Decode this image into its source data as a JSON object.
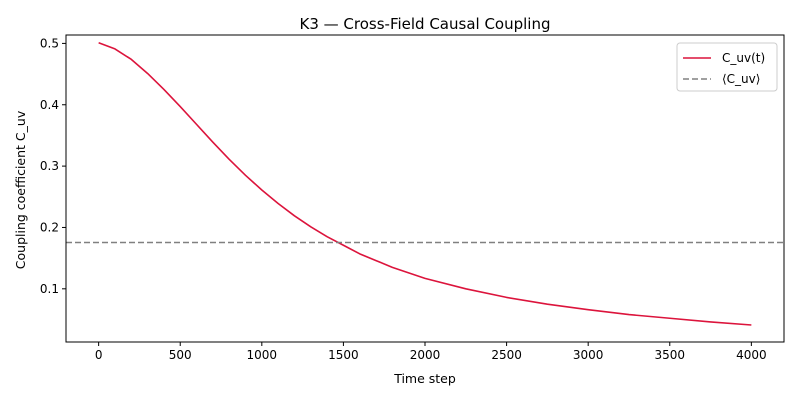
{
  "chart_data": {
    "type": "line",
    "title": "K3 — Cross-Field Causal Coupling",
    "xlabel": "Time step",
    "ylabel": "Coupling coefficient C_uv",
    "xlim": [
      -200,
      4200
    ],
    "ylim": [
      0.0133,
      0.5137
    ],
    "xticks": [
      0,
      500,
      1000,
      1500,
      2000,
      2500,
      3000,
      3500,
      4000
    ],
    "yticks": [
      0.1,
      0.2,
      0.3,
      0.4,
      0.5
    ],
    "grid": false,
    "legend_position": "top-right",
    "series": [
      {
        "name": "C_uv(t)",
        "color": "#dc143c",
        "style": "solid",
        "x": [
          0,
          100,
          200,
          300,
          400,
          500,
          600,
          700,
          800,
          900,
          1000,
          1100,
          1200,
          1300,
          1400,
          1500,
          1600,
          1700,
          1800,
          1900,
          2000,
          2250,
          2500,
          2750,
          3000,
          3250,
          3500,
          3750,
          4000
        ],
        "y": [
          0.501,
          0.491,
          0.474,
          0.451,
          0.425,
          0.397,
          0.368,
          0.339,
          0.311,
          0.285,
          0.261,
          0.239,
          0.219,
          0.201,
          0.185,
          0.171,
          0.157,
          0.146,
          0.135,
          0.126,
          0.117,
          0.1,
          0.086,
          0.075,
          0.066,
          0.058,
          0.052,
          0.046,
          0.041
        ]
      },
      {
        "name": "⟨C_uv⟩",
        "color": "#808080",
        "style": "dashed",
        "y_constant": 0.1755
      }
    ]
  }
}
